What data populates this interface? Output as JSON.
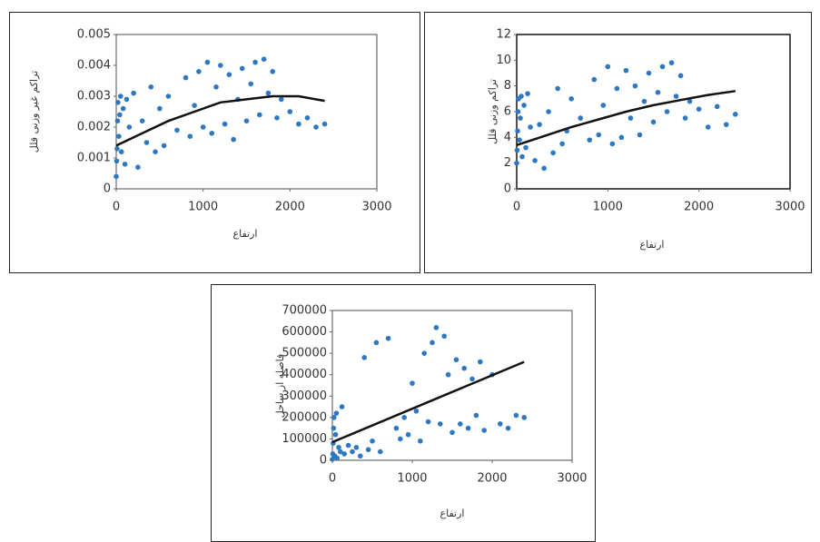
{
  "chart_data": [
    {
      "type": "scatter",
      "x_label": "ارتفاع",
      "y_label": "تراکم غیر وزنی قلل",
      "xlim": [
        0,
        3000
      ],
      "xticks": [
        0,
        1000,
        2000,
        3000
      ],
      "ylim": [
        0,
        0.005
      ],
      "yticks": [
        0,
        0.001,
        0.002,
        0.003,
        0.004,
        0.005
      ],
      "series": [
        {
          "mode": "markers",
          "color": "#2e78c2",
          "x": [
            0,
            5,
            10,
            15,
            20,
            30,
            40,
            50,
            60,
            80,
            100,
            120,
            150,
            200,
            250,
            300,
            350,
            400,
            450,
            500,
            550,
            600,
            700,
            800,
            850,
            900,
            950,
            1000,
            1050,
            1100,
            1150,
            1200,
            1250,
            1300,
            1350,
            1400,
            1450,
            1500,
            1550,
            1600,
            1650,
            1700,
            1750,
            1800,
            1850,
            1900,
            2000,
            2100,
            2200,
            2300,
            2400
          ],
          "values": [
            0.0004,
            0.0009,
            0.0013,
            0.0022,
            0.0028,
            0.0017,
            0.0024,
            0.003,
            0.0012,
            0.0026,
            0.0008,
            0.0029,
            0.002,
            0.0031,
            0.0007,
            0.0022,
            0.0015,
            0.0033,
            0.0012,
            0.0026,
            0.0014,
            0.003,
            0.0019,
            0.0036,
            0.0017,
            0.0027,
            0.0038,
            0.002,
            0.0041,
            0.0018,
            0.0033,
            0.004,
            0.0021,
            0.0037,
            0.0016,
            0.0029,
            0.0039,
            0.0022,
            0.0034,
            0.0041,
            0.0024,
            0.0042,
            0.0031,
            0.0038,
            0.0023,
            0.0029,
            0.0025,
            0.0021,
            0.0023,
            0.002,
            0.0021
          ]
        },
        {
          "mode": "line",
          "color": "#111111",
          "x": [
            0,
            300,
            600,
            900,
            1200,
            1500,
            1800,
            2100,
            2400
          ],
          "values": [
            0.0014,
            0.0018,
            0.0022,
            0.0025,
            0.0028,
            0.0029,
            0.003,
            0.003,
            0.00285
          ]
        }
      ]
    },
    {
      "type": "scatter",
      "x_label": "ارتفاع",
      "y_label": "تراکم وزنی قلل",
      "xlim": [
        0,
        3000
      ],
      "xticks": [
        0,
        1000,
        2000,
        3000
      ],
      "ylim": [
        0,
        12
      ],
      "yticks": [
        0,
        2,
        4,
        6,
        8,
        10,
        12
      ],
      "series": [
        {
          "mode": "markers",
          "color": "#2e78c2",
          "x": [
            0,
            5,
            10,
            15,
            20,
            30,
            40,
            50,
            60,
            80,
            100,
            120,
            150,
            200,
            250,
            300,
            350,
            400,
            450,
            500,
            550,
            600,
            700,
            800,
            850,
            900,
            950,
            1000,
            1050,
            1100,
            1150,
            1200,
            1250,
            1300,
            1350,
            1400,
            1450,
            1500,
            1550,
            1600,
            1650,
            1700,
            1750,
            1800,
            1850,
            1900,
            2000,
            2100,
            2200,
            2300,
            2400
          ],
          "values": [
            2.0,
            3.0,
            4.5,
            6.0,
            7.0,
            3.8,
            5.5,
            7.2,
            2.5,
            6.5,
            3.2,
            7.4,
            4.8,
            2.2,
            5.0,
            1.6,
            6.0,
            2.8,
            7.8,
            3.5,
            4.5,
            7.0,
            5.5,
            3.8,
            8.5,
            4.2,
            6.5,
            9.5,
            3.5,
            7.8,
            4.0,
            9.2,
            5.5,
            8.0,
            4.2,
            6.8,
            9.0,
            5.2,
            7.5,
            9.5,
            6.0,
            9.8,
            7.2,
            8.8,
            5.5,
            6.8,
            6.2,
            4.8,
            6.4,
            5.0,
            5.8
          ]
        },
        {
          "mode": "line",
          "color": "#111111",
          "x": [
            0,
            300,
            600,
            900,
            1200,
            1500,
            1800,
            2100,
            2400
          ],
          "values": [
            3.4,
            4.1,
            4.8,
            5.4,
            6.0,
            6.5,
            6.9,
            7.3,
            7.6
          ]
        }
      ]
    },
    {
      "type": "scatter",
      "x_label": "ارتفاع",
      "y_label": "فاصله از ساحل",
      "xlim": [
        0,
        3000
      ],
      "xticks": [
        0,
        1000,
        2000,
        3000
      ],
      "ylim": [
        0,
        700000
      ],
      "yticks": [
        0,
        100000,
        200000,
        300000,
        400000,
        500000,
        600000,
        700000
      ],
      "series": [
        {
          "mode": "markers",
          "color": "#2e78c2",
          "x": [
            0,
            5,
            10,
            15,
            20,
            30,
            40,
            50,
            60,
            80,
            100,
            120,
            150,
            200,
            250,
            300,
            350,
            400,
            450,
            500,
            550,
            600,
            700,
            800,
            850,
            900,
            950,
            1000,
            1050,
            1100,
            1150,
            1200,
            1250,
            1300,
            1350,
            1400,
            1450,
            1500,
            1550,
            1600,
            1650,
            1700,
            1750,
            1800,
            1850,
            1900,
            2000,
            2100,
            2200,
            2300,
            2400
          ],
          "values": [
            5000,
            30000,
            80000,
            150000,
            200000,
            20000,
            120000,
            220000,
            10000,
            60000,
            40000,
            250000,
            30000,
            70000,
            40000,
            60000,
            20000,
            480000,
            50000,
            90000,
            550000,
            40000,
            570000,
            150000,
            100000,
            200000,
            120000,
            360000,
            230000,
            90000,
            500000,
            180000,
            550000,
            620000,
            170000,
            580000,
            400000,
            130000,
            470000,
            170000,
            430000,
            150000,
            380000,
            210000,
            460000,
            140000,
            400000,
            170000,
            150000,
            210000,
            200000
          ]
        },
        {
          "mode": "line",
          "color": "#111111",
          "x": [
            0,
            2400
          ],
          "values": [
            85000,
            460000
          ]
        }
      ]
    }
  ]
}
